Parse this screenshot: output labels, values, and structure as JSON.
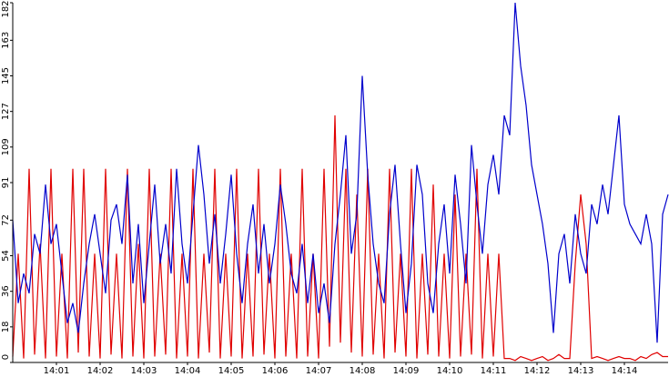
{
  "chart_data": {
    "type": "line",
    "x": [
      0,
      0.125,
      0.25,
      0.375,
      0.5,
      0.625,
      0.75,
      0.875,
      1,
      1.125,
      1.25,
      1.375,
      1.5,
      1.625,
      1.75,
      1.875,
      2,
      2.125,
      2.25,
      2.375,
      2.5,
      2.625,
      2.75,
      2.875,
      3,
      3.125,
      3.25,
      3.375,
      3.5,
      3.625,
      3.75,
      3.875,
      4,
      4.125,
      4.25,
      4.375,
      4.5,
      4.625,
      4.75,
      4.875,
      5,
      5.125,
      5.25,
      5.375,
      5.5,
      5.625,
      5.75,
      5.875,
      6,
      6.125,
      6.25,
      6.375,
      6.5,
      6.625,
      6.75,
      6.875,
      7,
      7.125,
      7.25,
      7.375,
      7.5,
      7.625,
      7.75,
      7.875,
      8,
      8.125,
      8.25,
      8.375,
      8.5,
      8.625,
      8.75,
      8.875,
      9,
      9.125,
      9.25,
      9.375,
      9.5,
      9.625,
      9.75,
      9.875,
      10,
      10.125,
      10.25,
      10.375,
      10.5,
      10.625,
      10.75,
      10.875,
      11,
      11.125,
      11.25,
      11.375,
      11.5,
      11.625,
      11.75,
      11.875,
      12,
      12.125,
      12.25,
      12.375,
      12.5,
      12.625,
      12.75,
      12.875,
      13,
      13.125,
      13.25,
      13.375,
      13.5,
      13.625,
      13.75,
      13.875,
      14,
      14.125,
      14.25,
      14.375,
      14.5,
      14.625,
      14.75,
      14.875,
      15
    ],
    "series": [
      {
        "color": "#0000cc",
        "values": [
          72,
          30,
          45,
          35,
          65,
          55,
          90,
          60,
          70,
          45,
          20,
          30,
          15,
          40,
          60,
          75,
          55,
          35,
          72,
          80,
          60,
          95,
          40,
          70,
          30,
          60,
          90,
          50,
          70,
          45,
          98,
          60,
          40,
          75,
          110,
          85,
          50,
          75,
          40,
          65,
          95,
          55,
          30,
          60,
          80,
          45,
          70,
          40,
          60,
          90,
          70,
          45,
          35,
          60,
          30,
          55,
          25,
          40,
          20,
          60,
          85,
          115,
          55,
          75,
          145,
          95,
          60,
          40,
          30,
          75,
          100,
          60,
          25,
          50,
          100,
          85,
          40,
          25,
          60,
          80,
          45,
          95,
          70,
          40,
          110,
          80,
          55,
          90,
          105,
          85,
          125,
          115,
          182,
          150,
          130,
          100,
          85,
          70,
          50,
          15,
          55,
          65,
          40,
          75,
          55,
          45,
          80,
          70,
          90,
          75,
          100,
          125,
          80,
          70,
          65,
          60,
          75,
          60,
          10,
          75,
          85
        ]
      },
      {
        "color": "#e00000",
        "values": [
          3,
          55,
          2,
          98,
          4,
          60,
          2,
          98,
          3,
          55,
          2,
          98,
          5,
          98,
          3,
          55,
          2,
          98,
          4,
          55,
          2,
          98,
          3,
          60,
          2,
          98,
          3,
          55,
          4,
          98,
          2,
          55,
          3,
          98,
          2,
          55,
          5,
          98,
          2,
          55,
          3,
          98,
          2,
          55,
          3,
          98,
          4,
          55,
          2,
          98,
          3,
          55,
          2,
          98,
          3,
          55,
          2,
          98,
          8,
          125,
          10,
          98,
          5,
          85,
          3,
          98,
          4,
          55,
          2,
          98,
          5,
          55,
          3,
          98,
          2,
          55,
          4,
          90,
          3,
          55,
          2,
          85,
          3,
          55,
          4,
          98,
          2,
          55,
          3,
          55,
          2,
          2,
          1,
          3,
          2,
          1,
          2,
          3,
          1,
          2,
          4,
          2,
          2,
          50,
          85,
          60,
          2,
          3,
          2,
          1,
          2,
          3,
          2,
          2,
          1,
          3,
          2,
          4,
          5,
          3,
          3
        ]
      }
    ],
    "xlim": [
      0,
      15
    ],
    "xticks": [
      {
        "value": 1,
        "label": "14:01"
      },
      {
        "value": 2,
        "label": "14:02"
      },
      {
        "value": 3,
        "label": "14:03"
      },
      {
        "value": 4,
        "label": "14:04"
      },
      {
        "value": 5,
        "label": "14:05"
      },
      {
        "value": 6,
        "label": "14:06"
      },
      {
        "value": 7,
        "label": "14:07"
      },
      {
        "value": 8,
        "label": "14:08"
      },
      {
        "value": 9,
        "label": "14:09"
      },
      {
        "value": 10,
        "label": "14:10"
      },
      {
        "value": 11,
        "label": "14:11"
      },
      {
        "value": 12,
        "label": "14:12"
      },
      {
        "value": 13,
        "label": "14:13"
      },
      {
        "value": 14,
        "label": "14:14"
      }
    ],
    "ylim": [
      0,
      182
    ],
    "yticks": [
      0,
      18,
      36,
      54,
      72,
      91,
      109,
      127,
      145,
      163,
      182
    ]
  }
}
